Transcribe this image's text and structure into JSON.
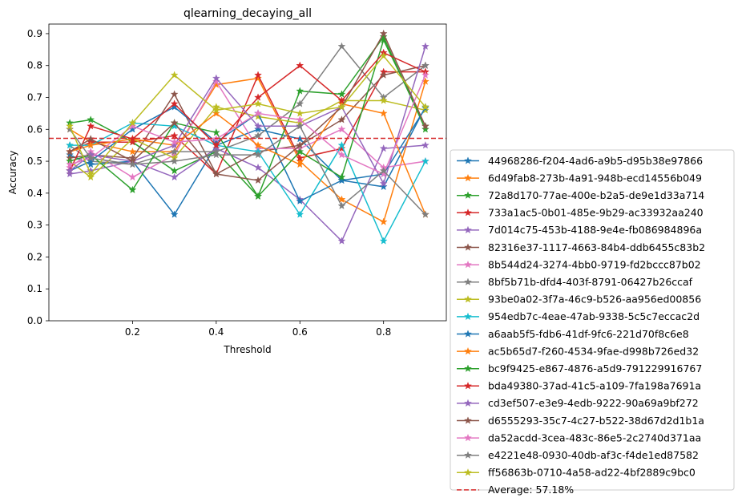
{
  "chart_data": {
    "type": "line",
    "title": "qlearning_decaying_all",
    "xlabel": "Threshold",
    "ylabel": "Accuracy",
    "xlim": [
      0.0,
      0.95
    ],
    "ylim": [
      0.0,
      0.93
    ],
    "xticks": [
      0.2,
      0.4,
      0.6,
      0.8
    ],
    "xtick_labels": [
      "0.2",
      "0.4",
      "0.6",
      "0.8"
    ],
    "yticks": [
      0.0,
      0.1,
      0.2,
      0.3,
      0.4,
      0.5,
      0.6,
      0.7,
      0.8,
      0.9
    ],
    "ytick_labels": [
      "0.0",
      "0.1",
      "0.2",
      "0.3",
      "0.4",
      "0.5",
      "0.6",
      "0.7",
      "0.8",
      "0.9"
    ],
    "grid": false,
    "legend_position": "outside-right-bottom",
    "x": [
      0.05,
      0.1,
      0.2,
      0.3,
      0.4,
      0.5,
      0.6,
      0.7,
      0.8,
      0.9
    ],
    "series": [
      {
        "name": "44968286-f204-4ad6-a9b5-d95b38e97866",
        "color": "#1f77b4",
        "values": [
          0.52,
          0.49,
          0.5,
          0.333,
          0.55,
          0.6,
          0.57,
          0.44,
          0.42,
          0.67
        ]
      },
      {
        "name": "6d49fab8-273b-4a91-948b-ecd14556b049",
        "color": "#ff7f0e",
        "values": [
          0.6,
          0.56,
          0.53,
          0.53,
          0.74,
          0.76,
          0.5,
          0.38,
          0.31,
          0.75
        ]
      },
      {
        "name": "72a8d170-77ae-400e-b2a5-de9e1d33a714",
        "color": "#2ca02c",
        "values": [
          0.62,
          0.63,
          0.56,
          0.47,
          0.53,
          0.39,
          0.72,
          0.71,
          0.89,
          0.6
        ]
      },
      {
        "name": "733a1ac5-0b01-485e-9b29-ac33932aa240",
        "color": "#d62728",
        "values": [
          0.53,
          0.56,
          0.56,
          0.58,
          0.46,
          0.77,
          0.51,
          0.54,
          0.78,
          0.78
        ]
      },
      {
        "name": "7d014c75-453b-4188-9e4e-fb086984896a",
        "color": "#9467bd",
        "values": [
          0.46,
          0.47,
          0.5,
          0.45,
          0.54,
          0.48,
          0.38,
          0.25,
          0.54,
          0.55
        ]
      },
      {
        "name": "82316e37-1117-4663-84b4-ddb6455c83b2",
        "color": "#8c564b",
        "values": [
          0.51,
          0.52,
          0.51,
          0.71,
          0.46,
          0.53,
          0.55,
          0.63,
          0.77,
          0.8
        ]
      },
      {
        "name": "8b544d24-3274-4bb0-9719-fd2bccc87b02",
        "color": "#e377c2",
        "values": [
          0.48,
          0.53,
          0.45,
          0.52,
          0.75,
          0.54,
          0.54,
          0.6,
          0.48,
          0.5
        ]
      },
      {
        "name": "8bf5b71b-dfd4-403f-8791-06427b26ccaf",
        "color": "#7f7f7f",
        "values": [
          0.55,
          0.5,
          0.49,
          0.53,
          0.53,
          0.58,
          0.68,
          0.86,
          0.7,
          0.8
        ]
      },
      {
        "name": "93be0a02-3f7a-46c9-b526-aa956ed00856",
        "color": "#bcbd22",
        "values": [
          0.5,
          0.45,
          0.57,
          0.51,
          0.67,
          0.64,
          0.62,
          0.69,
          0.69,
          0.66
        ]
      },
      {
        "name": "954edb7c-4eae-47ab-9338-5c5c7eccac2d",
        "color": "#17becf",
        "values": [
          0.55,
          0.55,
          0.62,
          0.61,
          0.55,
          0.53,
          0.333,
          0.55,
          0.25,
          0.5
        ]
      },
      {
        "name": "a6aab5f5-fdb6-41df-9fc6-221d70f8c6e8",
        "color": "#1f77b4",
        "values": [
          0.47,
          0.5,
          0.6,
          0.67,
          0.56,
          0.65,
          0.375,
          0.44,
          0.46,
          0.667
        ]
      },
      {
        "name": "ac5b65d7-f260-4534-9fae-d998b726ed32",
        "color": "#ff7f0e",
        "values": [
          0.53,
          0.55,
          0.57,
          0.55,
          0.65,
          0.55,
          0.49,
          0.68,
          0.65,
          0.333
        ]
      },
      {
        "name": "bc9f9425-e867-4876-a5d9-791229916767",
        "color": "#2ca02c",
        "values": [
          0.5,
          0.52,
          0.41,
          0.62,
          0.59,
          0.39,
          0.53,
          0.45,
          0.88,
          0.61
        ]
      },
      {
        "name": "bda49380-37ad-41c5-a109-7fa198a7691a",
        "color": "#d62728",
        "values": [
          0.47,
          0.61,
          0.57,
          0.68,
          0.55,
          0.7,
          0.8,
          0.69,
          0.84,
          0.78
        ]
      },
      {
        "name": "cd3ef507-e3e9-4edb-9222-90a69a9bf272",
        "color": "#9467bd",
        "values": [
          0.47,
          0.52,
          0.5,
          0.55,
          0.76,
          0.61,
          0.61,
          0.67,
          0.43,
          0.86
        ]
      },
      {
        "name": "d6555293-35c7-4c27-b522-38d67d2d1b1a",
        "color": "#8c564b",
        "values": [
          0.53,
          0.57,
          0.5,
          0.62,
          0.46,
          0.44,
          0.55,
          0.67,
          0.9,
          0.61
        ]
      },
      {
        "name": "da52acdd-3cea-483c-86e5-2c2740d371aa",
        "color": "#e377c2",
        "values": [
          0.49,
          0.51,
          0.61,
          0.56,
          0.57,
          0.65,
          0.63,
          0.52,
          0.46,
          0.77
        ]
      },
      {
        "name": "e4221e48-0930-40db-af3c-f4de1ed87582",
        "color": "#7f7f7f",
        "values": [
          0.6,
          0.51,
          0.49,
          0.5,
          0.52,
          0.52,
          0.61,
          0.36,
          0.47,
          0.333
        ]
      },
      {
        "name": "ff56863b-0710-4a58-ad22-4bf2889c9bc0",
        "color": "#bcbd22",
        "values": [
          0.61,
          0.46,
          0.62,
          0.77,
          0.66,
          0.68,
          0.65,
          0.67,
          0.83,
          0.67
        ]
      }
    ],
    "average_line": {
      "label": "Average: 57.18%",
      "value": 0.5718,
      "color": "#d62728",
      "style": "dashed"
    }
  }
}
